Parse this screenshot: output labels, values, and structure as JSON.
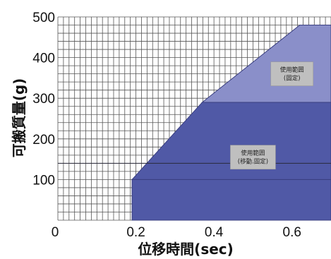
{
  "chart_data": {
    "type": "area",
    "xlabel": "位移時間(sec)",
    "ylabel": "可搬質量(g)",
    "xlim": [
      0,
      0.7
    ],
    "ylim": [
      0,
      500
    ],
    "x_ticks": [
      "0",
      "0.2",
      "0.4",
      "0.6"
    ],
    "y_ticks": [
      "100",
      "200",
      "300",
      "400",
      "500"
    ],
    "grid": true,
    "series": [
      {
        "x": [
          0.19,
          0.19,
          0.71,
          0.71
        ],
        "y": [
          0,
          100,
          100,
          0
        ]
      },
      {
        "x": [
          0.19,
          0.37,
          0.71,
          0.71
        ],
        "y": [
          100,
          290,
          290,
          100
        ]
      },
      {
        "x": [
          0.37,
          0.62,
          0.71,
          0.71
        ],
        "y": [
          290,
          480,
          480,
          290
        ]
      }
    ],
    "reference_lines": [
      {
        "orientation": "horizontal",
        "y": 140
      }
    ],
    "annotations": [
      {
        "lines": [
          "使用範囲",
          "(固定)"
        ],
        "x": 0.6,
        "y": 360
      },
      {
        "lines": [
          "使用範囲",
          "(移動.固定)"
        ],
        "x": 0.5,
        "y": 155
      }
    ],
    "colors": {
      "background": "#ffffff",
      "grid": "#555555",
      "dark_region": "#5059a6",
      "light_region": "#8a8fc9",
      "label_box": "#bfbfbf",
      "axis_text": "#111111"
    }
  }
}
